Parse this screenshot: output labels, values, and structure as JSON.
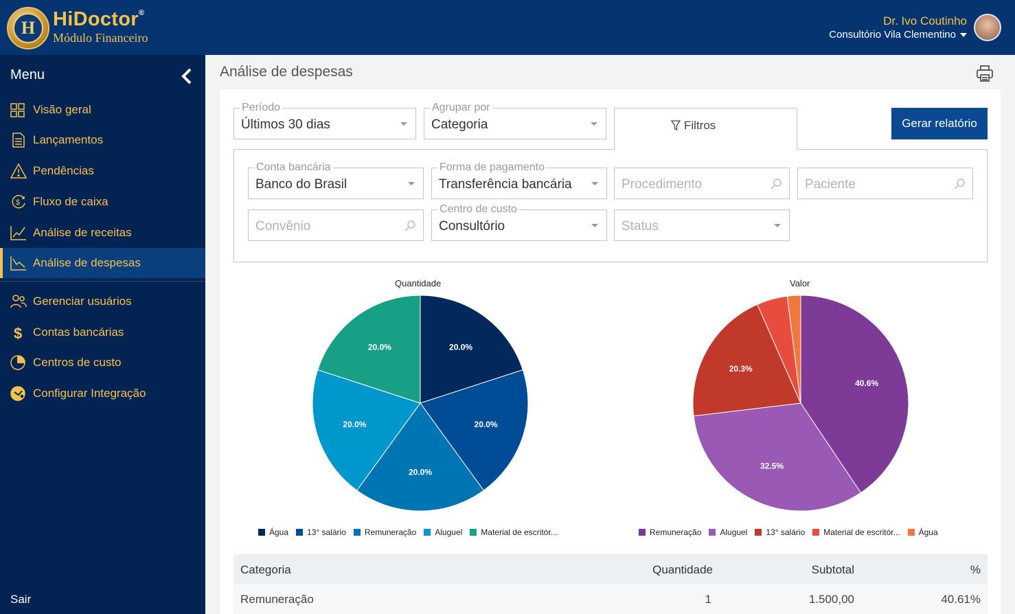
{
  "header": {
    "brand_name": "HiDoctor",
    "brand_reg": "®",
    "brand_sub": "Módulo Financeiro",
    "logo_letter": "H",
    "user_name": "Dr. Ivo Coutinho",
    "clinic": "Consultório Vila Clementino"
  },
  "sidebar": {
    "title": "Menu",
    "items": [
      {
        "label": "Visão geral",
        "icon": "dashboard-icon"
      },
      {
        "label": "Lançamentos",
        "icon": "document-icon"
      },
      {
        "label": "Pendências",
        "icon": "warning-icon"
      },
      {
        "label": "Fluxo de caixa",
        "icon": "cash-flow-icon"
      },
      {
        "label": "Análise de receitas",
        "icon": "line-chart-up-icon"
      },
      {
        "label": "Análise de despesas",
        "icon": "line-chart-down-icon",
        "active": true
      },
      {
        "label": "Gerenciar usuários",
        "icon": "users-icon"
      },
      {
        "label": "Contas bancárias",
        "icon": "dollar-icon"
      },
      {
        "label": "Centros de custo",
        "icon": "pie-icon"
      },
      {
        "label": "Configurar Integração",
        "icon": "integration-icon"
      }
    ],
    "logout": "Sair"
  },
  "page": {
    "title": "Análise de despesas"
  },
  "controls": {
    "period": {
      "label": "Período",
      "value": "Últimos 30 dias"
    },
    "group_by": {
      "label": "Agrupar por",
      "value": "Categoria"
    },
    "filters_tab": "Filtros",
    "report_button": "Gerar relatório"
  },
  "filters": {
    "bank_account": {
      "label": "Conta bancária",
      "value": "Banco do Brasil"
    },
    "payment_method": {
      "label": "Forma de pagamento",
      "value": "Transferência bancária"
    },
    "procedure": {
      "placeholder": "Procedimento"
    },
    "patient": {
      "placeholder": "Paciente"
    },
    "insurance": {
      "placeholder": "Convênio"
    },
    "cost_center": {
      "label": "Centro de custo",
      "value": "Consultório"
    },
    "status": {
      "placeholder": "Status"
    }
  },
  "colors": {
    "header_bg": "#053470",
    "sidebar_bg": "#032453",
    "accent_gold": "#f2c14e",
    "button_blue": "#0b4a93"
  },
  "chart_data": [
    {
      "type": "pie",
      "title": "Quantidade",
      "categories": [
        "Água",
        "13° salário",
        "Remuneração",
        "Aluguel",
        "Material de escritór..."
      ],
      "values": [
        20.0,
        20.0,
        20.0,
        20.0,
        20.0
      ],
      "labels": [
        "20.0%",
        "20.0%",
        "20.0%",
        "20.0%",
        "20.0%"
      ],
      "colors": [
        "#03295c",
        "#004c97",
        "#0075b4",
        "#0098cc",
        "#17a086"
      ]
    },
    {
      "type": "pie",
      "title": "Valor",
      "categories": [
        "Remuneração",
        "Aluguel",
        "13° salário",
        "Material de escritór...",
        "Água"
      ],
      "values": [
        40.6,
        32.5,
        20.3,
        4.6,
        2.0
      ],
      "labels": [
        "40.6%",
        "32.5%",
        "20.3%",
        "",
        ""
      ],
      "colors": [
        "#7d3a96",
        "#9b59b6",
        "#c0392b",
        "#e74c3c",
        "#f0783c"
      ]
    }
  ],
  "table": {
    "columns": [
      "Categoria",
      "Quantidade",
      "Subtotal",
      "%"
    ],
    "rows": [
      [
        "Remuneração",
        "1",
        "1.500,00",
        "40.61%"
      ]
    ]
  }
}
